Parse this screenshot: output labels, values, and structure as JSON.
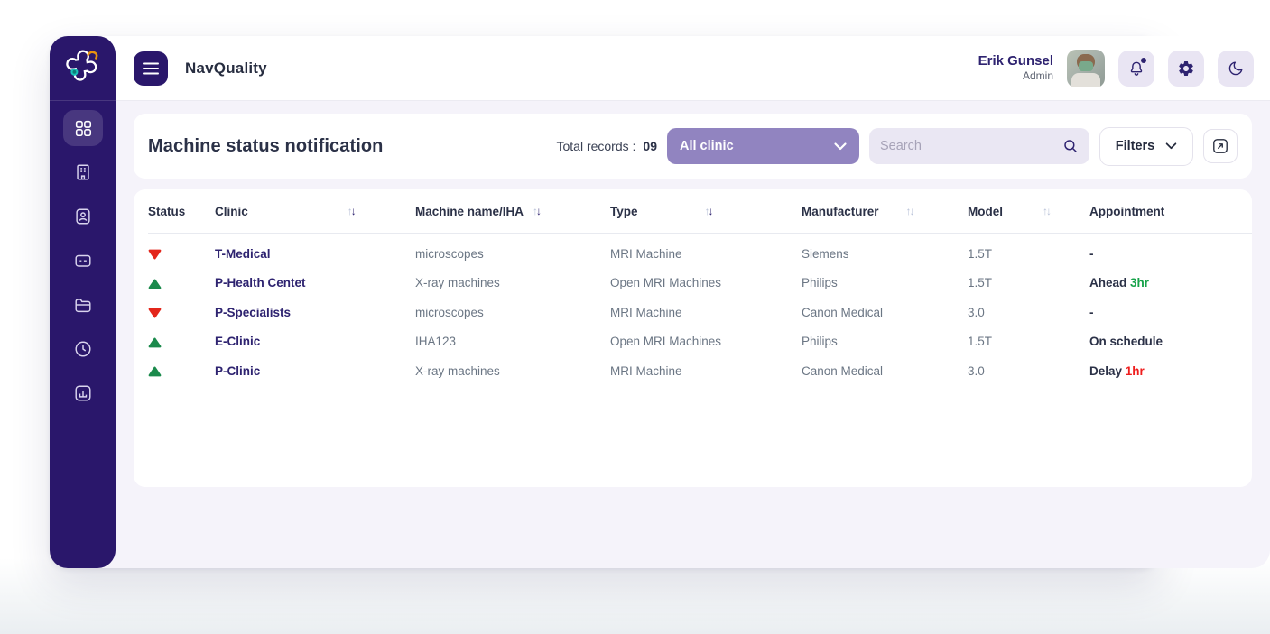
{
  "app": {
    "name": "NavQuality"
  },
  "header": {
    "user": {
      "name": "Erik Gunsel",
      "role": "Admin"
    },
    "actions": [
      "notification-bell",
      "settings-gear",
      "dark-mode-moon"
    ]
  },
  "sidebar": {
    "items": [
      {
        "name": "dashboard",
        "icon": "grid-icon",
        "active": true
      },
      {
        "name": "clinics",
        "icon": "building-icon",
        "active": false
      },
      {
        "name": "id-card",
        "icon": "badge-icon",
        "active": false
      },
      {
        "name": "cards",
        "icon": "card-icon",
        "active": false
      },
      {
        "name": "files",
        "icon": "folder-icon",
        "active": false
      },
      {
        "name": "history",
        "icon": "clock-icon",
        "active": false
      },
      {
        "name": "reports",
        "icon": "chart-icon",
        "active": false
      }
    ]
  },
  "toolbar": {
    "title": "Machine status notification",
    "total_records_label": "Total records :",
    "total_records_value": "09",
    "clinic_filter_value": "All clinic",
    "search_placeholder": "Search",
    "filters_label": "Filters"
  },
  "table": {
    "columns": [
      {
        "label": "Status",
        "sortable": false,
        "sort_active": false
      },
      {
        "label": "Clinic",
        "sortable": true,
        "sort_active": true
      },
      {
        "label": "Machine name/IHA",
        "sortable": true,
        "sort_active": true
      },
      {
        "label": "Type",
        "sortable": true,
        "sort_active": true
      },
      {
        "label": "Manufacturer",
        "sortable": true,
        "sort_active": false
      },
      {
        "label": "Model",
        "sortable": true,
        "sort_active": false
      },
      {
        "label": "Appointment",
        "sortable": false,
        "sort_active": false
      }
    ],
    "rows": [
      {
        "status": "down",
        "clinic": "T-Medical",
        "machine": "microscopes",
        "type": "MRI Machine",
        "manufacturer": "Siemens",
        "model": "1.5T",
        "appointment": {
          "label": "-",
          "time": "",
          "tone": ""
        }
      },
      {
        "status": "up",
        "clinic": "P-Health Centet",
        "machine": "X-ray machines",
        "type": "Open MRI Machines",
        "manufacturer": "Philips",
        "model": "1.5T",
        "appointment": {
          "label": "Ahead",
          "time": "3hr",
          "tone": "green"
        }
      },
      {
        "status": "down",
        "clinic": "P-Specialists",
        "machine": "microscopes",
        "type": "MRI Machine",
        "manufacturer": "Canon Medical",
        "model": "3.0",
        "appointment": {
          "label": "-",
          "time": "",
          "tone": ""
        }
      },
      {
        "status": "up",
        "clinic": "E-Clinic",
        "machine": "IHA123",
        "type": "Open MRI Machines",
        "manufacturer": "Philips",
        "model": "1.5T",
        "appointment": {
          "label": "On schedule",
          "time": "",
          "tone": ""
        }
      },
      {
        "status": "up",
        "clinic": "P-Clinic",
        "machine": "X-ray machines",
        "type": "MRI Machine",
        "manufacturer": "Canon Medical",
        "model": "3.0",
        "appointment": {
          "label": "Delay",
          "time": "1hr",
          "tone": "red"
        }
      }
    ]
  },
  "colors": {
    "sidebar": "#2a176b",
    "accent": "#2e2370",
    "lavender": "#9184c0",
    "content_bg": "#f5f3fa",
    "status_up": "#1b8a4c",
    "status_down": "#e3261b",
    "time_green": "#18a34b",
    "time_red": "#ef1d1d"
  }
}
